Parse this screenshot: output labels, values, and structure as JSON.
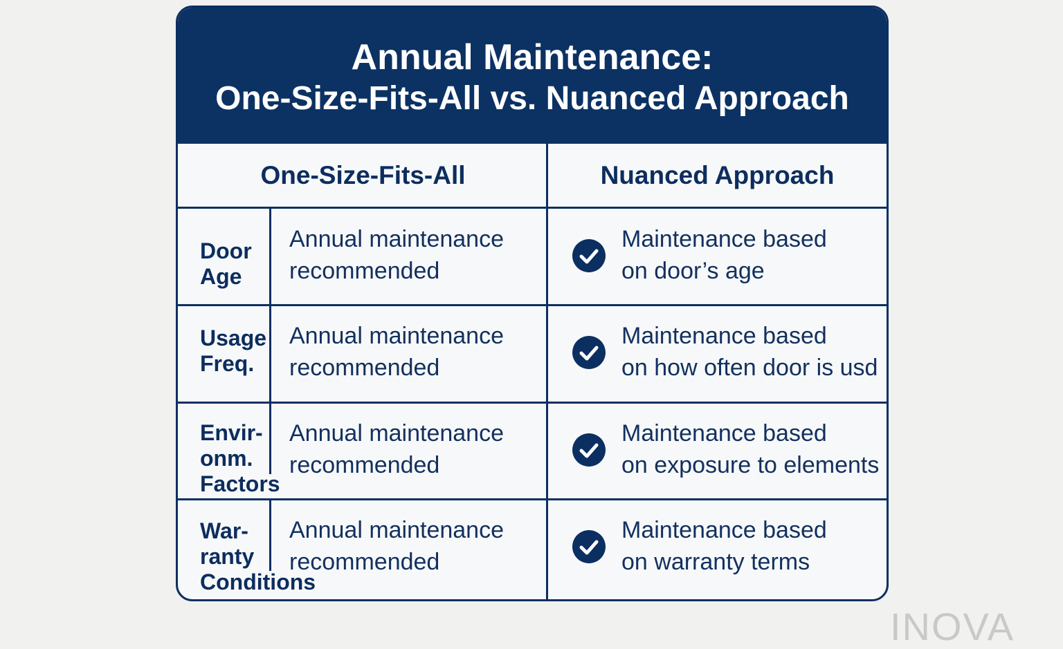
{
  "title": {
    "line1": "Annual Maintenance:",
    "line2": "One-Size-Fits-All vs. Nuanced Approach"
  },
  "columns": [
    "One-Size-Fits-All",
    "Nuanced Approach"
  ],
  "rows": [
    {
      "label": [
        "Door",
        "Age"
      ],
      "one_size": [
        "Annual maintenance",
        "recommended"
      ],
      "nuanced": [
        "Maintenance based",
        "on door’s age"
      ]
    },
    {
      "label": [
        "Usage",
        "Freq."
      ],
      "one_size": [
        "Annual maintenance",
        "recommended"
      ],
      "nuanced": [
        "Maintenance based",
        "on how often door is usd"
      ]
    },
    {
      "label": [
        "Envir-",
        "onm.",
        "Factors"
      ],
      "one_size": [
        "Annual maintenance",
        "recommended"
      ],
      "nuanced": [
        "Maintenance based",
        "on exposure to elements"
      ]
    },
    {
      "label": [
        "War-",
        "ranty",
        "Conditions"
      ],
      "one_size": [
        "Annual maintenance",
        "recommended"
      ],
      "nuanced": [
        "Maintenance based",
        "on warranty terms"
      ]
    }
  ],
  "icons": {
    "nuanced_marker": "check-circle-icon"
  },
  "colors": {
    "navy": "#0c3264",
    "background": "#f1f1f0"
  },
  "watermark": "INOVA"
}
